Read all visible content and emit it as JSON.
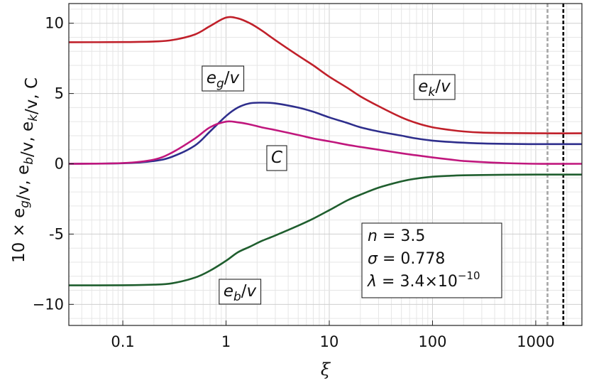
{
  "chart_data": {
    "type": "line",
    "xscale": "log",
    "xlim": [
      0.03,
      2800
    ],
    "ylim": [
      -11.5,
      11.4
    ],
    "grid": true,
    "xlabel": "ξ",
    "ylabel": "10 ×  e_g/v, e_b/v, e_k/v, C",
    "xticks": [
      {
        "value": 0.1,
        "label": "0.1"
      },
      {
        "value": 1,
        "label": "1"
      },
      {
        "value": 10,
        "label": "10"
      },
      {
        "value": 100,
        "label": "100"
      },
      {
        "value": 1000,
        "label": "1000"
      }
    ],
    "yticks": [
      {
        "value": 10,
        "label": "10"
      },
      {
        "value": 5,
        "label": "5"
      },
      {
        "value": 0,
        "label": "0"
      },
      {
        "value": -5,
        "label": "-5"
      },
      {
        "value": -10,
        "label": "−10"
      }
    ],
    "vlines": [
      {
        "x": 1300,
        "color": "#a6a6a6",
        "style": "dashed"
      },
      {
        "x": 1850,
        "color": "#000000",
        "style": "dashed"
      }
    ],
    "series": [
      {
        "name": "e_k/v",
        "color": "#c0202a",
        "x": [
          0.03,
          0.1,
          0.2,
          0.3,
          0.5,
          0.7,
          1.0,
          1.3,
          1.7,
          2.2,
          3,
          5,
          7,
          10,
          15,
          20,
          30,
          50,
          70,
          100,
          150,
          200,
          300,
          500,
          1000,
          2800
        ],
        "y": [
          8.65,
          8.66,
          8.7,
          8.8,
          9.2,
          9.8,
          10.4,
          10.35,
          10.0,
          9.5,
          8.8,
          7.7,
          7.0,
          6.2,
          5.4,
          4.8,
          4.1,
          3.3,
          2.9,
          2.6,
          2.4,
          2.3,
          2.22,
          2.19,
          2.17,
          2.17
        ]
      },
      {
        "name": "",
        "color": "#2e2e8c",
        "x": [
          0.03,
          0.1,
          0.2,
          0.3,
          0.5,
          0.7,
          1.0,
          1.3,
          1.7,
          2.2,
          3,
          5,
          7,
          10,
          15,
          20,
          30,
          50,
          70,
          100,
          150,
          200,
          300,
          500,
          1000,
          2800
        ],
        "y": [
          0.0,
          0.04,
          0.2,
          0.5,
          1.3,
          2.3,
          3.4,
          4.0,
          4.3,
          4.35,
          4.3,
          4.0,
          3.7,
          3.3,
          2.9,
          2.6,
          2.3,
          2.0,
          1.8,
          1.65,
          1.55,
          1.5,
          1.45,
          1.42,
          1.4,
          1.4
        ]
      },
      {
        "name": "C",
        "color": "#c0177d",
        "x": [
          0.03,
          0.1,
          0.2,
          0.3,
          0.5,
          0.7,
          1.0,
          1.3,
          1.7,
          2.2,
          3,
          5,
          7,
          10,
          15,
          20,
          30,
          50,
          70,
          100,
          150,
          200,
          300,
          500,
          1000,
          2800
        ],
        "y": [
          0.0,
          0.05,
          0.3,
          0.8,
          1.8,
          2.6,
          3.0,
          2.95,
          2.8,
          2.6,
          2.4,
          2.05,
          1.8,
          1.6,
          1.35,
          1.2,
          1.0,
          0.75,
          0.6,
          0.45,
          0.3,
          0.2,
          0.12,
          0.05,
          0.0,
          0.0
        ]
      },
      {
        "name": "e_b/v",
        "color": "#1f5e2e",
        "x": [
          0.03,
          0.1,
          0.2,
          0.3,
          0.5,
          0.7,
          1.0,
          1.3,
          1.7,
          2.2,
          3,
          5,
          7,
          10,
          15,
          20,
          30,
          50,
          70,
          100,
          150,
          200,
          300,
          500,
          1000,
          2800
        ],
        "y": [
          -8.65,
          -8.64,
          -8.6,
          -8.5,
          -8.1,
          -7.6,
          -6.9,
          -6.3,
          -5.9,
          -5.5,
          -5.1,
          -4.4,
          -3.9,
          -3.3,
          -2.6,
          -2.2,
          -1.7,
          -1.25,
          -1.05,
          -0.92,
          -0.85,
          -0.82,
          -0.8,
          -0.78,
          -0.77,
          -0.77
        ]
      }
    ],
    "annotations": [
      {
        "id": "eg",
        "base": "e",
        "sub": "g",
        "tail": "/v"
      },
      {
        "id": "ek",
        "base": "e",
        "sub": "k",
        "tail": "/v"
      },
      {
        "id": "c",
        "base": "C",
        "sub": "",
        "tail": ""
      },
      {
        "id": "eb",
        "base": "e",
        "sub": "b",
        "tail": "/v"
      }
    ],
    "params": [
      {
        "sym": "n",
        "value": " = 3.5",
        "sup": ""
      },
      {
        "sym": "σ",
        "value": " = 0.778",
        "sup": ""
      },
      {
        "sym": "λ",
        "value": " = 3.4×10",
        "sup": "−10"
      }
    ]
  }
}
